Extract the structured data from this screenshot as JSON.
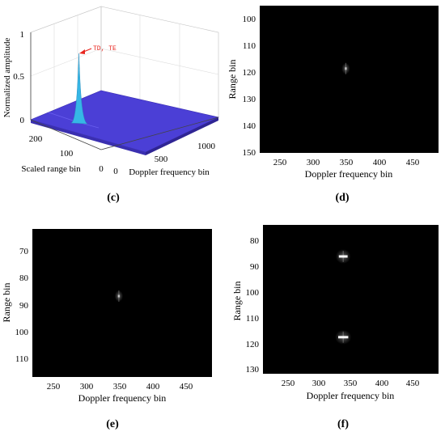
{
  "panels": {
    "c": {
      "caption": "(c)"
    },
    "d": {
      "caption": "(d)"
    },
    "e": {
      "caption": "(e)"
    },
    "f": {
      "caption": "(f)"
    }
  },
  "colors": {
    "surface": "#4b3fd6",
    "peak": "#36b7e6",
    "annotation": "#e8251e",
    "plot_bg": "#000000"
  },
  "chart_data": [
    {
      "panel": "c",
      "type": "surface",
      "zlabel": "Normalized amplitude",
      "ylabel": "Scaled range bin",
      "xlabel": "Doppler frequency bin",
      "z_ticks": [
        "0",
        "0.5",
        "1"
      ],
      "y_ticks": [
        "200",
        "100",
        "0"
      ],
      "x_ticks": [
        "0",
        "500",
        "1000"
      ],
      "zlim": [
        0,
        1
      ],
      "ylim": [
        0,
        250
      ],
      "xlim": [
        0,
        1100
      ],
      "floor_level": 0.03,
      "grid": true,
      "peaks": [
        {
          "label": "TD, TE",
          "doppler_bin": 350,
          "range_bin": 120,
          "amplitude": 0.75
        }
      ]
    },
    {
      "panel": "d",
      "type": "heatmap",
      "xlabel": "Doppler frequency bin",
      "ylabel": "Range bin",
      "x_ticks": [
        "250",
        "300",
        "350",
        "400",
        "450"
      ],
      "y_ticks": [
        "100",
        "110",
        "120",
        "130",
        "140",
        "150"
      ],
      "xlim": [
        220,
        490
      ],
      "ylim": [
        96,
        151
      ],
      "y_reversed": true,
      "targets": [
        {
          "doppler_bin": 350,
          "range_bin": 119.5,
          "intensity": 0.6,
          "width_bins": 1
        }
      ]
    },
    {
      "panel": "e",
      "type": "heatmap",
      "xlabel": "Doppler frequency bin",
      "ylabel": "Range bin",
      "x_ticks": [
        "250",
        "300",
        "350",
        "400",
        "450"
      ],
      "y_ticks": [
        "70",
        "80",
        "90",
        "100",
        "110"
      ],
      "xlim": [
        220,
        490
      ],
      "ylim": [
        63,
        117
      ],
      "y_reversed": true,
      "targets": [
        {
          "doppler_bin": 350,
          "range_bin": 87.5,
          "intensity": 0.6,
          "width_bins": 1
        }
      ]
    },
    {
      "panel": "f",
      "type": "heatmap",
      "xlabel": "Doppler frequency bin",
      "ylabel": "Range bin",
      "x_ticks": [
        "250",
        "300",
        "350",
        "400",
        "450"
      ],
      "y_ticks": [
        "80",
        "90",
        "100",
        "110",
        "120",
        "130"
      ],
      "xlim": [
        220,
        500
      ],
      "ylim": [
        75,
        134
      ],
      "y_reversed": true,
      "targets": [
        {
          "doppler_bin": 348,
          "range_bin": 87.5,
          "intensity": 0.95,
          "width_bins": 14
        },
        {
          "doppler_bin": 348,
          "range_bin": 119.5,
          "intensity": 0.95,
          "width_bins": 16
        }
      ]
    }
  ]
}
